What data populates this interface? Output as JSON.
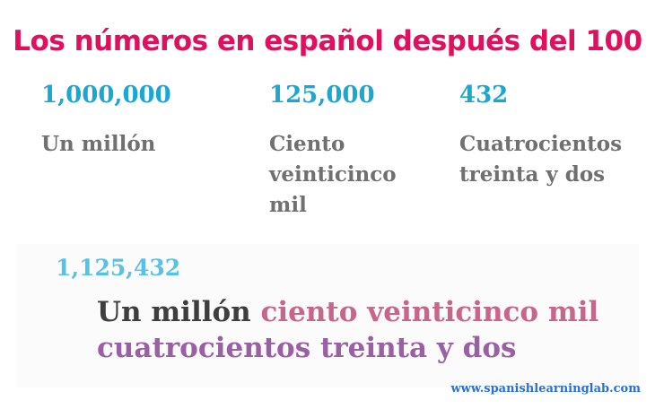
{
  "title": "Los números en español después del 100",
  "examples": [
    {
      "number": "1,000,000",
      "words": "Un millón"
    },
    {
      "number": "125,000",
      "words": "Ciento veinticinco mil"
    },
    {
      "number": "432",
      "words": "Cuatrocientos treinta y dos"
    }
  ],
  "combined": {
    "number": "1,125,432",
    "part1": "Un millón",
    "part2": "ciento veinticinco mil",
    "part3": "cuatrocientos treinta y dos"
  },
  "footer": "www.spanishlearninglab.com",
  "colors": {
    "title": "#e0105f",
    "number": "#1aa7d2",
    "words": "#707070",
    "part1": "#3e3e3e",
    "part2": "#c9648a",
    "part3": "#9b5fa6",
    "link": "#2a6fd6"
  }
}
